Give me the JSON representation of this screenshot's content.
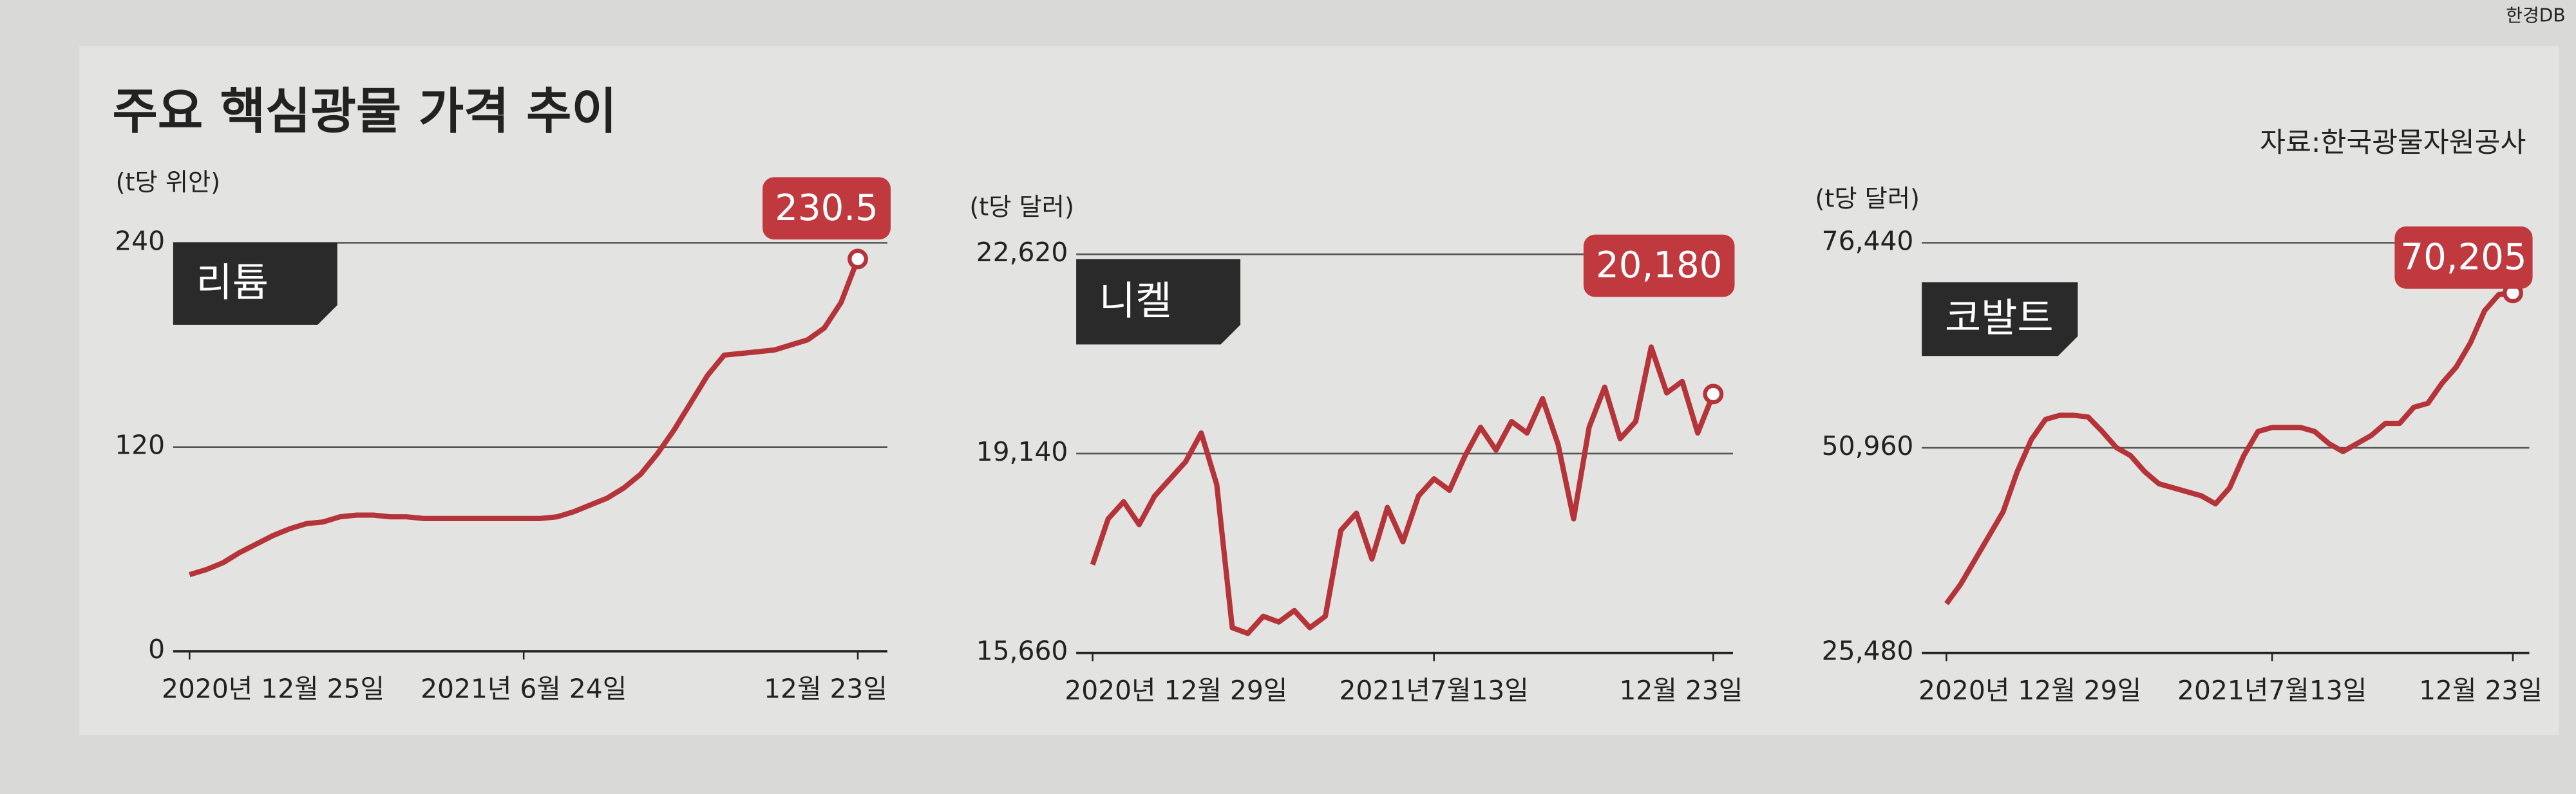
{
  "title": "주요 핵심광물 가격 추이",
  "source": "자료:한국광물자원공사",
  "credit": "한경DB",
  "chart_data": [
    {
      "type": "line",
      "title": "리튬",
      "y_label": "(t당 위안)",
      "color": "#b5343a",
      "categories": [
        "2020년 12월 25일",
        null,
        null,
        null,
        null,
        null,
        null,
        null,
        null,
        null,
        null,
        null,
        null,
        null,
        null,
        null,
        null,
        null,
        null,
        null,
        "2021년 6월 24일",
        null,
        null,
        null,
        null,
        null,
        null,
        null,
        null,
        null,
        null,
        null,
        null,
        null,
        null,
        null,
        null,
        null,
        null,
        null,
        "12월 23일"
      ],
      "values": [
        45,
        48,
        52,
        58,
        63,
        68,
        72,
        75,
        76,
        79,
        80,
        80,
        79,
        79,
        78,
        78,
        78,
        78,
        78,
        78,
        78,
        78,
        79,
        82,
        86,
        90,
        96,
        104,
        116,
        130,
        146,
        162,
        174,
        175,
        176,
        177,
        180,
        183,
        190,
        205,
        230.5
      ],
      "value_labels": [
        null,
        null,
        null,
        null,
        null,
        null,
        null,
        null,
        null,
        null,
        null,
        null,
        null,
        null,
        null,
        null,
        null,
        null,
        null,
        null,
        null,
        null,
        null,
        null,
        null,
        null,
        null,
        null,
        null,
        null,
        null,
        null,
        null,
        null,
        null,
        null,
        null,
        null,
        null,
        null,
        "230.5"
      ],
      "ylim": [
        0,
        240
      ],
      "yticks": [
        0,
        120,
        240
      ]
    },
    {
      "type": "line",
      "title": "니켈",
      "y_label": "(t당 달러)",
      "color": "#b5343a",
      "categories": [
        "2020년 12월 29일",
        null,
        null,
        null,
        null,
        null,
        null,
        null,
        null,
        null,
        null,
        null,
        null,
        null,
        null,
        null,
        null,
        null,
        null,
        null,
        null,
        null,
        "2021년7월13일",
        null,
        null,
        null,
        null,
        null,
        null,
        null,
        null,
        null,
        null,
        null,
        null,
        null,
        null,
        null,
        null,
        null,
        "12월 23일"
      ],
      "values": [
        17200,
        18000,
        18300,
        17900,
        18400,
        18700,
        19000,
        19500,
        18600,
        16100,
        16000,
        16300,
        16200,
        16400,
        16100,
        16300,
        17800,
        18100,
        17300,
        18200,
        17600,
        18400,
        18700,
        18500,
        19100,
        19600,
        19200,
        19700,
        19500,
        20100,
        19300,
        18000,
        19600,
        20300,
        19400,
        19700,
        21000,
        20200,
        20400,
        19500,
        20180
      ],
      "value_labels": [
        null,
        null,
        null,
        null,
        null,
        null,
        null,
        null,
        null,
        null,
        null,
        null,
        null,
        null,
        null,
        null,
        null,
        null,
        null,
        null,
        null,
        null,
        null,
        null,
        null,
        null,
        null,
        null,
        null,
        null,
        null,
        null,
        null,
        null,
        null,
        null,
        null,
        null,
        null,
        null,
        "20,180"
      ],
      "ylim": [
        15660,
        22620
      ],
      "yticks": [
        {
          "value": 15660,
          "label": "15,660"
        },
        {
          "value": 19140,
          "label": "19,140"
        },
        {
          "value": 22620,
          "label": "22,620"
        }
      ]
    },
    {
      "type": "line",
      "title": "코발트",
      "y_label": "(t당 달러)",
      "color": "#b5343a",
      "categories": [
        "2020년 12월 29일",
        null,
        null,
        null,
        null,
        null,
        null,
        null,
        null,
        null,
        null,
        null,
        null,
        null,
        null,
        null,
        null,
        null,
        null,
        null,
        null,
        null,
        null,
        "2021년7월13일",
        null,
        null,
        null,
        null,
        null,
        null,
        null,
        null,
        null,
        null,
        null,
        null,
        null,
        null,
        null,
        null,
        "12월 23일"
      ],
      "values": [
        31600,
        34000,
        37000,
        40000,
        43000,
        48000,
        52000,
        54500,
        55000,
        55000,
        54800,
        53000,
        51000,
        50000,
        48000,
        46500,
        46000,
        45500,
        45000,
        44000,
        46000,
        50000,
        53000,
        53500,
        53500,
        53500,
        53000,
        51500,
        50500,
        51500,
        52500,
        54000,
        54000,
        56000,
        56500,
        59000,
        61000,
        64000,
        68000,
        70000,
        70205
      ],
      "value_labels": [
        null,
        null,
        null,
        null,
        null,
        null,
        null,
        null,
        null,
        null,
        null,
        null,
        null,
        null,
        null,
        null,
        null,
        null,
        null,
        null,
        null,
        null,
        null,
        null,
        null,
        null,
        null,
        null,
        null,
        null,
        null,
        null,
        null,
        null,
        null,
        null,
        null,
        null,
        null,
        null,
        "70,205"
      ],
      "ylim": [
        25480,
        76440
      ],
      "yticks": [
        {
          "value": 25480,
          "label": "25,480"
        },
        {
          "value": 50960,
          "label": "50,960"
        },
        {
          "value": 76440,
          "label": "76,440"
        }
      ]
    }
  ]
}
